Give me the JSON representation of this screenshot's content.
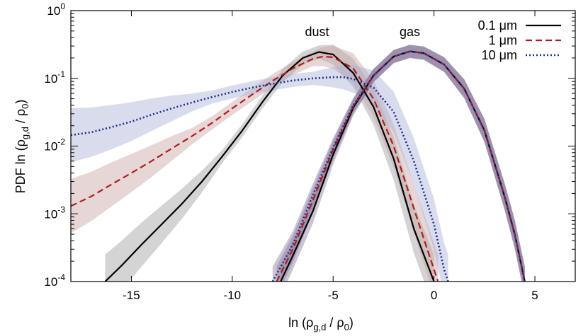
{
  "chart_data": {
    "type": "line",
    "xlabel": "ln (ρg,d / ρ0)",
    "ylabel": "PDF ln (ρg,d / ρ0)",
    "xlim": [
      -18,
      7
    ],
    "ylim": [
      0.0001,
      1
    ],
    "yscale": "log",
    "grid": false,
    "legend_position": "top-right",
    "x_ticks": [
      -15,
      -10,
      -5,
      0,
      5
    ],
    "x_tick_labels": [
      "-15",
      "-10",
      "-5",
      "0",
      "5"
    ],
    "y_ticks": [
      0.0001,
      0.001,
      0.01,
      0.1,
      1
    ],
    "y_tick_labels": [
      {
        "base": "10",
        "exp": "-4"
      },
      {
        "base": "10",
        "exp": "-3"
      },
      {
        "base": "10",
        "exp": "-2"
      },
      {
        "base": "10",
        "exp": "-1"
      },
      {
        "base": "10",
        "exp": "0"
      }
    ],
    "annotations": [
      {
        "text": "dust",
        "x": -5.8,
        "y": 0.42
      },
      {
        "text": "gas",
        "x": -1.2,
        "y": 0.42
      }
    ],
    "series": [
      {
        "name": "0.1 μm",
        "group": "dust",
        "color": "#000000",
        "dash": "solid",
        "band_color": "#a0a0a0",
        "x": [
          -16.3,
          -15.5,
          -14.5,
          -13.5,
          -12.5,
          -11.5,
          -10.5,
          -9.5,
          -8.5,
          -7.5,
          -6.5,
          -5.7,
          -5.0,
          -4.0,
          -3.0,
          -2.0,
          -1.0,
          0.0
        ],
        "y": [
          0.0001,
          0.00017,
          0.00035,
          0.0007,
          0.0014,
          0.003,
          0.007,
          0.017,
          0.045,
          0.11,
          0.2,
          0.245,
          0.225,
          0.12,
          0.038,
          0.0065,
          0.0006,
          0.0001
        ]
      },
      {
        "name": "1 μm",
        "group": "dust",
        "color": "#b01c1c",
        "dash": "dashed",
        "band_color": "#c9a3a3",
        "x": [
          -18.0,
          -17.0,
          -16.0,
          -15.0,
          -14.0,
          -13.0,
          -12.0,
          -11.0,
          -10.0,
          -9.0,
          -8.0,
          -7.0,
          -6.0,
          -5.5,
          -5.0,
          -4.0,
          -3.0,
          -2.0,
          -1.0,
          0.0,
          0.2
        ],
        "y": [
          0.0013,
          0.0018,
          0.0027,
          0.004,
          0.006,
          0.0092,
          0.014,
          0.022,
          0.036,
          0.058,
          0.092,
          0.14,
          0.195,
          0.21,
          0.205,
          0.14,
          0.05,
          0.01,
          0.0012,
          0.00015,
          0.0001
        ]
      },
      {
        "name": "10 μm",
        "group": "dust",
        "color": "#1f2e8c",
        "dash": "dotted",
        "band_color": "#a9b2d8",
        "x": [
          -18.0,
          -17.0,
          -16.0,
          -15.0,
          -14.0,
          -13.0,
          -12.0,
          -11.0,
          -10.0,
          -9.0,
          -8.0,
          -7.0,
          -6.0,
          -5.0,
          -4.5,
          -4.0,
          -3.0,
          -2.0,
          -1.0,
          0.0,
          0.5,
          0.7
        ],
        "y": [
          0.0145,
          0.016,
          0.019,
          0.023,
          0.029,
          0.036,
          0.044,
          0.053,
          0.063,
          0.073,
          0.083,
          0.093,
          0.1,
          0.104,
          0.104,
          0.098,
          0.073,
          0.032,
          0.006,
          0.0007,
          0.00015,
          0.0001
        ]
      },
      {
        "name": "",
        "group": "gas",
        "color": "#000000",
        "dash": "solid",
        "band_color": "#8c7c9e",
        "x": [
          -7.6,
          -7.0,
          -6.0,
          -5.0,
          -4.0,
          -3.0,
          -2.0,
          -1.2,
          -0.5,
          0.5,
          1.5,
          2.5,
          3.5,
          4.0,
          4.5
        ],
        "y": [
          0.0001,
          0.00024,
          0.0011,
          0.0075,
          0.037,
          0.11,
          0.21,
          0.25,
          0.235,
          0.16,
          0.07,
          0.017,
          0.0018,
          0.0005,
          0.0001
        ]
      },
      {
        "name": "",
        "group": "gas",
        "color": "#b01c1c",
        "dash": "dashed",
        "band_color": "#8c7c9e",
        "x": [
          -7.8,
          -7.0,
          -6.0,
          -5.0,
          -4.0,
          -3.0,
          -2.0,
          -1.2,
          -0.5,
          0.5,
          1.5,
          2.5,
          3.5,
          4.0,
          4.5
        ],
        "y": [
          0.0001,
          0.0003,
          0.0016,
          0.0088,
          0.039,
          0.11,
          0.21,
          0.25,
          0.235,
          0.16,
          0.07,
          0.017,
          0.0018,
          0.0005,
          0.0001
        ]
      },
      {
        "name": "",
        "group": "gas",
        "color": "#1f2e8c",
        "dash": "dotted",
        "band_color": "#8c7c9e",
        "x": [
          -8.0,
          -7.0,
          -6.0,
          -5.0,
          -4.0,
          -3.0,
          -2.0,
          -1.2,
          -0.5,
          0.5,
          1.5,
          2.5,
          3.5,
          4.0,
          4.5
        ],
        "y": [
          0.0001,
          0.00035,
          0.0019,
          0.0095,
          0.04,
          0.11,
          0.21,
          0.25,
          0.235,
          0.16,
          0.07,
          0.017,
          0.0018,
          0.0005,
          0.0001
        ]
      }
    ]
  }
}
